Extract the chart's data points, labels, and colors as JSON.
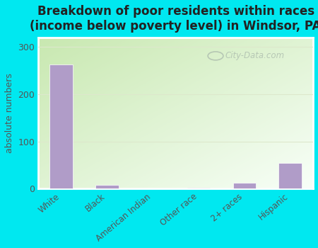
{
  "title": "Breakdown of poor residents within races\n(income below poverty level) in Windsor, PA",
  "categories": [
    "White",
    "Black",
    "American Indian",
    "Other race",
    "2+ races",
    "Hispanic"
  ],
  "values": [
    263,
    8,
    0,
    2,
    12,
    55
  ],
  "bar_color": "#b09cc8",
  "bar_edge_color": "#ffffff",
  "ylabel": "absolute numbers",
  "ylim": [
    0,
    320
  ],
  "yticks": [
    0,
    100,
    200,
    300
  ],
  "outer_bg": "#00e8f0",
  "title_fontsize": 12,
  "axis_bg_topleft": "#c8e8b0",
  "axis_bg_bottomright": "#f0faf0",
  "grid_color": "#dde8cc",
  "watermark": "City-Data.com",
  "watermark_color": "#b0c0b0",
  "frame_color": "#ffffff"
}
